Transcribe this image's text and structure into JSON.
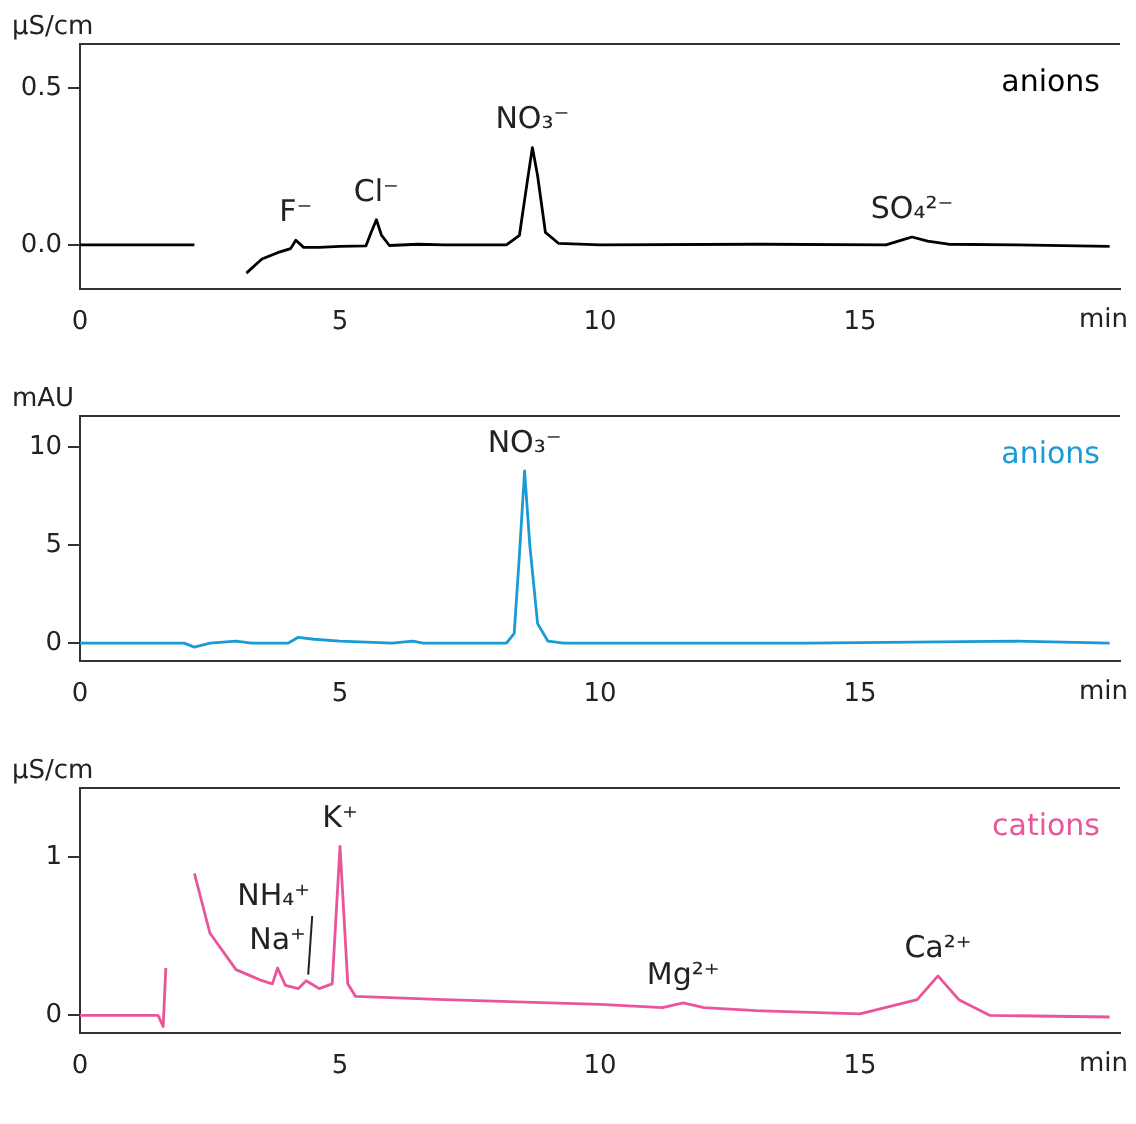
{
  "chart_data": [
    {
      "type": "line",
      "ylabel": "μS/cm",
      "xlabel": "min",
      "xlim": [
        0,
        20
      ],
      "xticks": [
        0,
        5,
        10,
        15
      ],
      "ylim": [
        -0.14,
        0.64
      ],
      "yticks": [
        {
          "value": 0,
          "label": "0.0"
        },
        {
          "value": 0.5,
          "label": "0.5"
        }
      ],
      "x": [
        0,
        2.2,
        2.25,
        2.6,
        3.0,
        3.2,
        3.5,
        3.8,
        4.05,
        4.15,
        4.3,
        4.6,
        5.0,
        5.5,
        5.6,
        5.7,
        5.8,
        5.95,
        6.5,
        7,
        8.2,
        8.45,
        8.6,
        8.7,
        8.8,
        8.95,
        9.2,
        10,
        13,
        15.5,
        15.8,
        16.0,
        16.3,
        16.7,
        18,
        19.8
      ],
      "series": [
        {
          "name": "anions",
          "color": "#000000",
          "values": [
            0,
            0,
            null,
            null,
            null,
            -0.09,
            -0.045,
            -0.025,
            -0.012,
            0.015,
            -0.008,
            -0.008,
            -0.005,
            -0.003,
            0.04,
            0.08,
            0.03,
            -0.002,
            0.002,
            0,
            0,
            0.03,
            0.2,
            0.31,
            0.22,
            0.04,
            0.005,
            0,
            0.002,
            0,
            0.015,
            0.025,
            0.012,
            0.002,
            0,
            -0.005
          ]
        }
      ],
      "annotations": [
        {
          "text": "F⁻",
          "x": 4.15,
          "y": 0.015
        },
        {
          "text": "Cl⁻",
          "x": 5.7,
          "y": 0.08
        },
        {
          "text": "NO₃⁻",
          "x": 8.7,
          "y": 0.31
        },
        {
          "text": "SO₄²⁻",
          "x": 16.0,
          "y": 0.025
        }
      ]
    },
    {
      "type": "line",
      "ylabel": "mAU",
      "xlabel": "min",
      "xlim": [
        0,
        20
      ],
      "xticks": [
        0,
        5,
        10,
        15
      ],
      "ylim": [
        -0.9,
        11.6
      ],
      "yticks": [
        0,
        5,
        10
      ],
      "x": [
        0,
        2.0,
        2.2,
        2.5,
        3.0,
        3.3,
        4.0,
        4.2,
        4.5,
        5.0,
        6.0,
        6.4,
        6.6,
        8.2,
        8.35,
        8.45,
        8.55,
        8.65,
        8.8,
        9.0,
        9.3,
        14,
        18,
        19.8
      ],
      "series": [
        {
          "name": "anions",
          "color": "#1a9ad6",
          "values": [
            0,
            0,
            -0.2,
            0,
            0.1,
            0,
            0,
            0.3,
            0.2,
            0.1,
            0,
            0.1,
            0,
            0,
            0.5,
            4.5,
            8.8,
            5,
            1,
            0.1,
            0,
            0,
            0.1,
            0
          ]
        }
      ],
      "annotations": [
        {
          "text": "NO₃⁻",
          "x": 8.55,
          "y": 8.8
        }
      ]
    },
    {
      "type": "line",
      "ylabel": "μS/cm",
      "xlabel": "min",
      "xlim": [
        0,
        20
      ],
      "xticks": [
        0,
        5,
        10,
        15
      ],
      "ylim": [
        -0.11,
        1.44
      ],
      "yticks": [
        0,
        1
      ],
      "x": [
        0,
        1.5,
        1.6,
        1.65,
        1.72,
        1.9,
        2.08,
        2.2,
        2.5,
        3.0,
        3.5,
        3.7,
        3.8,
        3.95,
        4.2,
        4.35,
        4.6,
        4.85,
        5.0,
        5.15,
        5.3,
        7,
        10,
        11.2,
        11.6,
        12,
        13,
        15,
        16.1,
        16.5,
        16.9,
        17.5,
        19.8
      ],
      "series": [
        {
          "name": "cations",
          "color": "#e8559a",
          "values": [
            0,
            0,
            -0.07,
            0.3,
            null,
            null,
            null,
            0.9,
            0.52,
            0.29,
            0.22,
            0.2,
            0.3,
            0.19,
            0.17,
            0.22,
            0.17,
            0.2,
            1.07,
            0.2,
            0.12,
            0.1,
            0.07,
            0.05,
            0.08,
            0.05,
            0.03,
            0.01,
            0.1,
            0.25,
            0.1,
            0,
            -0.01
          ]
        }
      ],
      "annotations": [
        {
          "text": "Na⁺",
          "x": 3.8,
          "y": 0.3
        },
        {
          "text": "NH₄⁺",
          "x": 4.35,
          "y": 0.22
        },
        {
          "text": "K⁺",
          "x": 5.0,
          "y": 1.07
        },
        {
          "text": "Mg²⁺",
          "x": 11.6,
          "y": 0.075
        },
        {
          "text": "Ca²⁺",
          "x": 16.5,
          "y": 0.25
        }
      ]
    }
  ]
}
